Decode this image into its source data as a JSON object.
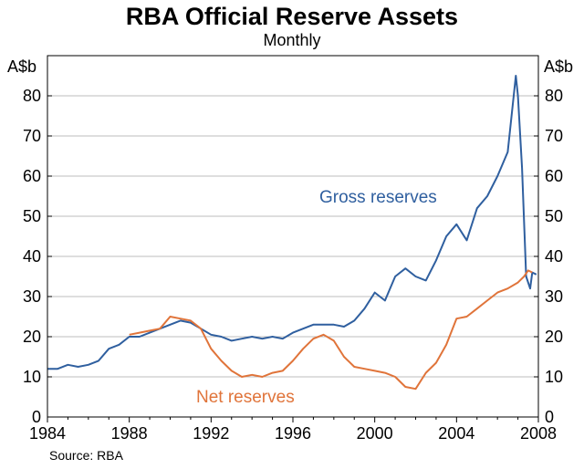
{
  "chart_data": {
    "type": "line",
    "title": "RBA Official Reserve Assets",
    "subtitle": "Monthly",
    "ylabel_left": "A$b",
    "ylabel_right": "A$b",
    "source": "Source: RBA",
    "xlim": [
      1984,
      2008
    ],
    "ylim": [
      0,
      90
    ],
    "x_ticks": [
      1984,
      1988,
      1992,
      1996,
      2000,
      2004,
      2008
    ],
    "x_tick_labels": [
      "1984",
      "1988",
      "1992",
      "1996",
      "2000",
      "2004",
      "2008"
    ],
    "y_ticks": [
      0,
      10,
      20,
      30,
      40,
      50,
      60,
      70,
      80
    ],
    "y_tick_labels": [
      "0",
      "10",
      "20",
      "30",
      "40",
      "50",
      "60",
      "70",
      "80"
    ],
    "grid": "horizontal",
    "series": [
      {
        "name": "Gross reserves",
        "color": "#2f5f9f",
        "x": [
          1984.0,
          1984.5,
          1985.0,
          1985.5,
          1986.0,
          1986.5,
          1987.0,
          1987.5,
          1988.0,
          1988.5,
          1989.0,
          1989.5,
          1990.0,
          1990.5,
          1991.0,
          1991.5,
          1992.0,
          1992.5,
          1993.0,
          1993.5,
          1994.0,
          1994.5,
          1995.0,
          1995.5,
          1996.0,
          1996.5,
          1997.0,
          1997.5,
          1998.0,
          1998.5,
          1999.0,
          1999.5,
          2000.0,
          2000.5,
          2001.0,
          2001.5,
          2002.0,
          2002.5,
          2003.0,
          2003.5,
          2004.0,
          2004.5,
          2005.0,
          2005.5,
          2006.0,
          2006.5,
          2006.9,
          2007.0,
          2007.2,
          2007.4,
          2007.6,
          2007.7,
          2007.9
        ],
        "values": [
          12,
          12,
          13,
          12.5,
          13,
          14,
          17,
          18,
          20,
          20,
          21,
          22,
          23,
          24,
          23.5,
          22,
          20.5,
          20,
          19,
          19.5,
          20,
          19.5,
          20,
          19.5,
          21,
          22,
          23,
          23,
          23,
          22.5,
          24,
          27,
          31,
          29,
          35,
          37,
          35,
          34,
          39,
          45,
          48,
          44,
          52,
          55,
          60,
          66,
          85,
          80,
          62,
          35,
          32,
          36,
          35.5
        ]
      },
      {
        "name": "Net reserves",
        "color": "#e0743a",
        "x": [
          1988.0,
          1988.5,
          1989.0,
          1989.5,
          1990.0,
          1990.5,
          1991.0,
          1991.5,
          1992.0,
          1992.5,
          1993.0,
          1993.5,
          1994.0,
          1994.5,
          1995.0,
          1995.5,
          1996.0,
          1996.5,
          1997.0,
          1997.5,
          1998.0,
          1998.5,
          1999.0,
          1999.5,
          2000.0,
          2000.5,
          2001.0,
          2001.5,
          2002.0,
          2002.5,
          2003.0,
          2003.5,
          2004.0,
          2004.5,
          2005.0,
          2005.5,
          2006.0,
          2006.5,
          2007.0,
          2007.3,
          2007.5,
          2007.7
        ],
        "values": [
          20.5,
          21,
          21.5,
          22,
          25,
          24.5,
          24,
          22,
          17,
          14,
          11.5,
          10,
          10.5,
          10,
          11,
          11.5,
          14,
          17,
          19.5,
          20.5,
          19,
          15,
          12.5,
          12,
          11.5,
          11,
          10,
          7.5,
          7,
          11,
          13.5,
          18,
          24.5,
          25,
          27,
          29,
          31,
          32,
          33.5,
          35,
          36.5,
          36
        ]
      }
    ],
    "annotations": [
      {
        "text": "Gross reserves",
        "series": "Gross reserves"
      },
      {
        "text": "Net reserves",
        "series": "Net reserves"
      }
    ]
  }
}
